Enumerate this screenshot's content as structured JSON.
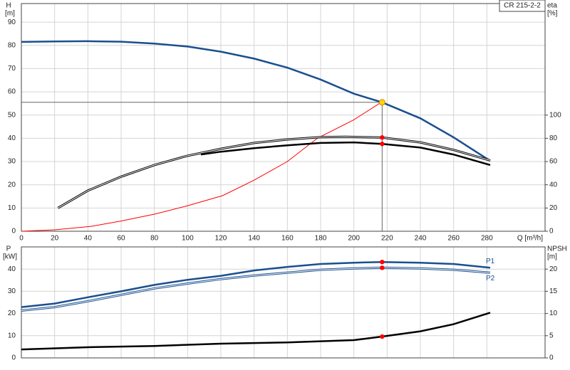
{
  "chart_data": [
    {
      "type": "line",
      "product_label": "CR 215-2-2",
      "y_label": "H",
      "y_unit": "[m]",
      "y2_label": "eta",
      "y2_unit": "[%]",
      "x_label": "Q [m³/h]",
      "xlim": [
        0,
        315
      ],
      "xticks": [
        0,
        20,
        40,
        60,
        80,
        100,
        120,
        140,
        160,
        180,
        200,
        220,
        240,
        260,
        280
      ],
      "ylim": [
        0,
        98
      ],
      "yticks": [
        0,
        10,
        20,
        30,
        40,
        50,
        60,
        70,
        80,
        90
      ],
      "y2lim": [
        0,
        196
      ],
      "y2ticks": [
        0,
        20,
        40,
        60,
        80,
        100
      ],
      "grid": true,
      "duty_point": {
        "x": 217,
        "y": 55.5
      },
      "series": [
        {
          "color": "#1a4f8f",
          "style": "thick",
          "x": [
            0,
            20,
            40,
            60,
            80,
            100,
            120,
            140,
            160,
            180,
            200,
            217,
            240,
            260,
            282
          ],
          "values": [
            81.5,
            81.7,
            81.8,
            81.6,
            80.8,
            79.5,
            77.3,
            74.3,
            70.4,
            65.3,
            59.2,
            55.5,
            48.6,
            40.4,
            30.3
          ]
        },
        {
          "color": "#ff0000",
          "style": "thin",
          "x": [
            0,
            20,
            42,
            60,
            81,
            100,
            121,
            140,
            160,
            178,
            200,
            216
          ],
          "values": [
            0,
            0.6,
            2.1,
            4.4,
            7.5,
            11,
            15.3,
            22,
            30,
            40,
            48,
            55.3
          ]
        },
        {
          "color": "#000000",
          "style": "double",
          "axis": "y2",
          "x": [
            22,
            40,
            60,
            80,
            100,
            120,
            140,
            160,
            180,
            195,
            217,
            240,
            260,
            282
          ],
          "values": [
            20,
            35,
            47,
            57,
            65,
            71,
            76,
            79,
            81,
            81.3,
            80.7,
            76.5,
            70,
            61
          ]
        },
        {
          "color": "#000000",
          "style": "thick",
          "axis": "y2",
          "x": [
            108,
            120,
            140,
            160,
            180,
            200,
            217,
            240,
            260,
            282
          ],
          "values": [
            66,
            68.5,
            71.5,
            74,
            76,
            76.5,
            75.2,
            72,
            66,
            57
          ]
        },
        {
          "color": "#ff0000",
          "style": "dot",
          "axis": "y2",
          "x": [
            217,
            217
          ],
          "values": [
            80.7,
            75.2
          ]
        }
      ]
    },
    {
      "type": "line",
      "y_label": "P",
      "y_unit": "[kW]",
      "y2_label": "NPSH",
      "y2_unit": "[m]",
      "xlim": [
        0,
        315
      ],
      "xticks": [
        0,
        20,
        40,
        60,
        80,
        100,
        120,
        140,
        160,
        180,
        200,
        220,
        240,
        260,
        280
      ],
      "ylim": [
        0,
        50
      ],
      "yticks": [
        0,
        10,
        20,
        30,
        40
      ],
      "y2lim": [
        0,
        25
      ],
      "y2ticks": [
        0,
        5,
        10,
        15,
        20
      ],
      "grid": true,
      "series": [
        {
          "name": "P1",
          "color": "#1a4f8f",
          "style": "thick",
          "x": [
            0,
            20,
            40,
            60,
            80,
            100,
            120,
            140,
            160,
            180,
            200,
            217,
            240,
            260,
            282
          ],
          "values": [
            22.9,
            24.5,
            27.3,
            30,
            32.9,
            35.2,
            37,
            39.4,
            41,
            42.3,
            42.9,
            43.2,
            42.9,
            42.3,
            40.6
          ]
        },
        {
          "name": "P2",
          "color": "#1a4f8f",
          "style": "double",
          "x": [
            0,
            20,
            40,
            60,
            80,
            100,
            120,
            140,
            160,
            180,
            200,
            217,
            240,
            260,
            282
          ],
          "values": [
            21.3,
            22.9,
            25.5,
            28.4,
            31.3,
            33.5,
            35.5,
            37.1,
            38.4,
            39.7,
            40.3,
            40.6,
            40.3,
            39.7,
            38.4
          ]
        },
        {
          "color": "#000000",
          "style": "thick",
          "axis": "y2",
          "x": [
            0,
            40,
            80,
            120,
            160,
            200,
            217,
            240,
            260,
            282
          ],
          "values": [
            1.9,
            2.4,
            2.7,
            3.2,
            3.5,
            4.0,
            4.8,
            6.0,
            7.6,
            10.2
          ]
        },
        {
          "color": "#ff0000",
          "style": "dot",
          "x": [
            217,
            217
          ],
          "values": [
            43.2,
            40.6
          ]
        },
        {
          "color": "#ff0000",
          "style": "dot",
          "axis": "y2",
          "x": [
            217
          ],
          "values": [
            4.8
          ]
        }
      ]
    }
  ]
}
